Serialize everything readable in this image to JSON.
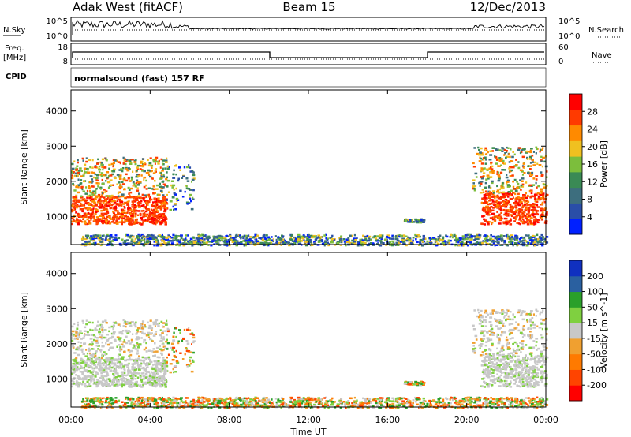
{
  "header": {
    "station": "Adak West (fitACF)",
    "beam": "Beam 15",
    "date": "12/Dec/2013"
  },
  "nsky_panel": {
    "left_label": "N.Sky",
    "left_ticks": [
      "10^5",
      "10^0"
    ],
    "right_label": "N.Search",
    "right_ticks": [
      "10^5",
      "10^0"
    ]
  },
  "freq_panel": {
    "left_label_1": "Freq.",
    "left_label_2": "[MHz]",
    "left_ticks": [
      "18",
      "8"
    ],
    "right_label": "Nave",
    "right_ticks": [
      "60",
      "0"
    ]
  },
  "cpid": {
    "label": "CPID",
    "text": "normalsound (fast) 157 RF"
  },
  "colors": {
    "power": [
      "#0020ff",
      "#2a4ea8",
      "#3d6e7e",
      "#3a8a55",
      "#7cbe3c",
      "#f0c020",
      "#ff8a00",
      "#ff3a00",
      "#ff0000"
    ],
    "velocity": [
      "#ff0000",
      "#ff4400",
      "#ff7a00",
      "#f0a030",
      "#c8c8c8",
      "#7fd040",
      "#2aa02a",
      "#2a60a0",
      "#1030c0"
    ]
  },
  "chart_data": [
    {
      "type": "heatmap",
      "panel": "power",
      "ylabel": "Slant Range [km]",
      "xlabel": "",
      "yticks": [
        "1000",
        "2000",
        "3000",
        "4000"
      ],
      "ylim": [
        200,
        4600
      ],
      "colorbar": {
        "label": "Power [dB]",
        "ticks": [
          "4",
          "8",
          "12",
          "16",
          "20",
          "24",
          "28"
        ]
      },
      "regions": [
        {
          "t": [
            0.0,
            4.8
          ],
          "range": [
            800,
            1600
          ],
          "level": "high"
        },
        {
          "t": [
            0.0,
            4.8
          ],
          "range": [
            1600,
            2700
          ],
          "level": "medium"
        },
        {
          "t": [
            4.8,
            6.2
          ],
          "range": [
            1200,
            2500
          ],
          "level": "low"
        },
        {
          "t": [
            0.5,
            24.0
          ],
          "range": [
            200,
            500
          ],
          "level": "low"
        },
        {
          "t": [
            16.8,
            17.8
          ],
          "range": [
            850,
            950
          ],
          "level": "low"
        },
        {
          "t": [
            20.7,
            24.0
          ],
          "range": [
            800,
            1700
          ],
          "level": "high"
        },
        {
          "t": [
            20.2,
            24.0
          ],
          "range": [
            1700,
            3000
          ],
          "level": "medium"
        }
      ]
    },
    {
      "type": "heatmap",
      "panel": "velocity",
      "ylabel": "Slant Range [km]",
      "xlabel": "Time UT",
      "xticks": [
        "00:00",
        "04:00",
        "08:00",
        "12:00",
        "16:00",
        "20:00",
        "00:00"
      ],
      "yticks": [
        "1000",
        "2000",
        "3000",
        "4000"
      ],
      "ylim": [
        200,
        4600
      ],
      "xlim": [
        0,
        24
      ],
      "colorbar": {
        "label": "Velocity [m s^-1]",
        "ticks": [
          "200",
          "100",
          "50",
          "15",
          "-15",
          "-50",
          "-100",
          "-200"
        ]
      }
    }
  ]
}
